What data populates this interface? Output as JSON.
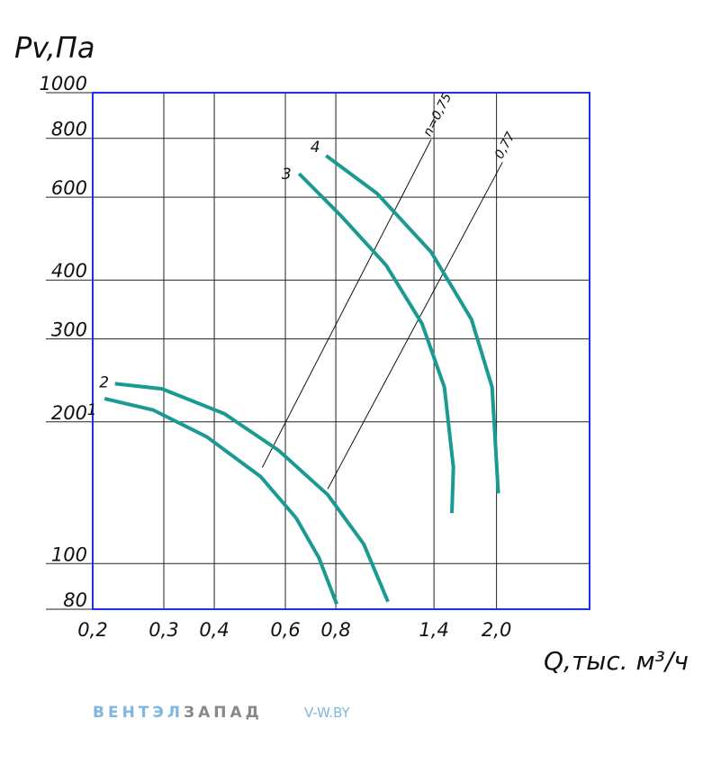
{
  "chart_data": {
    "type": "line",
    "y_label": "Pv,Па",
    "x_label": "Q,тыс. м³/ч",
    "xscale": "log",
    "yscale": "log",
    "grid": true,
    "xlim": [
      0.2,
      3.4
    ],
    "ylim": [
      80,
      1000
    ],
    "xticks": [
      {
        "value": 0.2,
        "label": "0,2"
      },
      {
        "value": 0.3,
        "label": "0,3"
      },
      {
        "value": 0.4,
        "label": "0,4"
      },
      {
        "value": 0.6,
        "label": "0,6"
      },
      {
        "value": 0.8,
        "label": "0,8"
      },
      {
        "value": 1.4,
        "label": "1,4"
      },
      {
        "value": 2.0,
        "label": "2,0"
      }
    ],
    "yticks": [
      80,
      100,
      200,
      300,
      400,
      600,
      800,
      1000
    ],
    "series": [
      {
        "name": "1",
        "color": "#1a9a92",
        "x": [
          0.214,
          0.282,
          0.383,
          0.521,
          0.638,
          0.726,
          0.804
        ],
        "values": [
          224,
          212,
          186,
          153,
          125,
          103,
          82
        ]
      },
      {
        "name": "2",
        "color": "#1a9a92",
        "x": [
          0.227,
          0.297,
          0.424,
          0.577,
          0.764,
          0.938,
          1.077
        ],
        "values": [
          241,
          235,
          208,
          174,
          140,
          110,
          83
        ]
      },
      {
        "name": "3",
        "color": "#1a9a92",
        "x": [
          0.649,
          0.825,
          1.066,
          1.308,
          1.486,
          1.564,
          1.55
        ],
        "values": [
          673,
          547,
          430,
          323,
          237,
          160,
          128
        ]
      },
      {
        "name": "4",
        "color": "#1a9a92",
        "x": [
          0.757,
          1.012,
          1.377,
          1.734,
          1.95,
          2.02
        ],
        "values": [
          735,
          611,
          459,
          330,
          237,
          141
        ]
      }
    ],
    "efficiency_lines": [
      {
        "name": "n=0,75",
        "x": [
          0.526,
          1.377
        ],
        "values": [
          160,
          795
        ]
      },
      {
        "name": "0,77",
        "x": [
          0.764,
          2.07
        ],
        "values": [
          144,
          712
        ]
      }
    ]
  },
  "footer": {
    "brand": [
      "ВЕНТЭЛ",
      "ЗАПАД"
    ],
    "site": "V-W.BY"
  }
}
